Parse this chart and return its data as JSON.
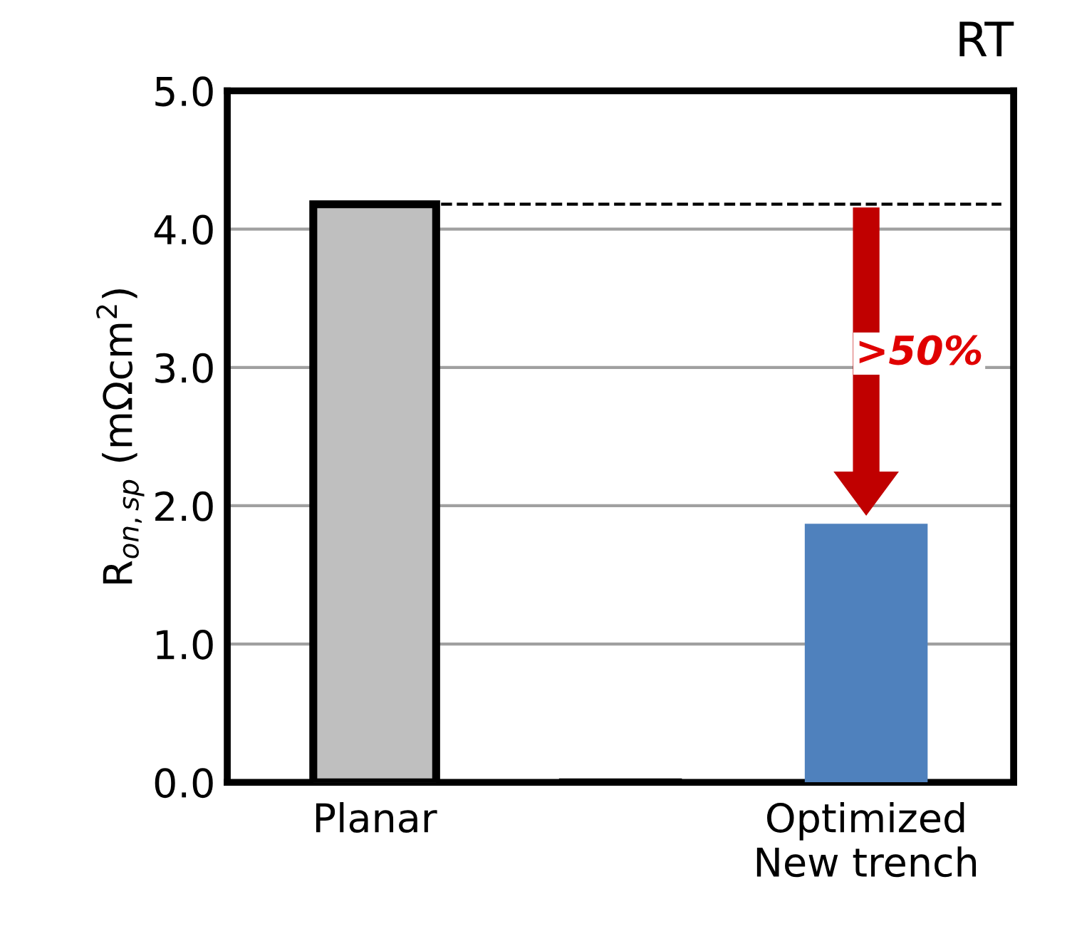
{
  "chart_data": {
    "type": "bar",
    "ylabel": "R$_{on,sp}$ (mΩcm$^{2}$)",
    "categories": [
      "Planar",
      null,
      "Optimized\nNew trench"
    ],
    "values": [
      4.18,
      0,
      1.87
    ],
    "colors": [
      "#bfbfbf",
      "#000000",
      "#4f81bd"
    ],
    "ylim": [
      0,
      5
    ],
    "yticks": [
      {
        "value": 0,
        "label": "0.0"
      },
      {
        "value": 1,
        "label": "1.0"
      },
      {
        "value": 2,
        "label": "2.0"
      },
      {
        "value": 3,
        "label": "3.0"
      },
      {
        "value": 4,
        "label": "4.0"
      },
      {
        "value": 5,
        "label": "5.0"
      }
    ],
    "grid": "y",
    "ref_lines": [
      {
        "axis": "y",
        "value": 4.18,
        "label": null,
        "color": "#000000",
        "line_style": "dashed"
      }
    ],
    "annotations": [
      ">50%",
      "RT"
    ]
  }
}
